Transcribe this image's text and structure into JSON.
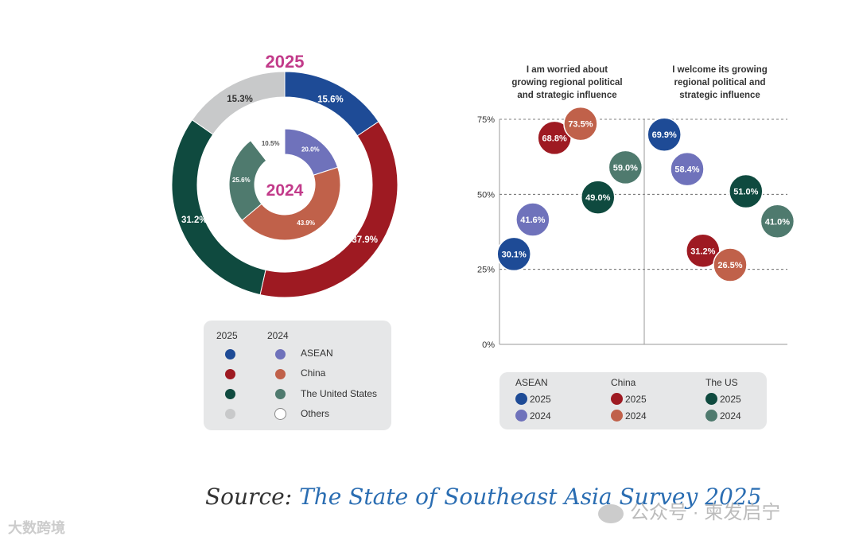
{
  "colors": {
    "asean_2025": "#1e4b96",
    "asean_2024": "#6f72bb",
    "china_2025": "#9e1a22",
    "china_2024": "#c0614a",
    "us_2025": "#0f4a3f",
    "us_2024": "#4f7a6e",
    "others_2025": "#c8c9ca",
    "others_2024": "#ffffff",
    "title_pink": "#c23b8a"
  },
  "chart_data": [
    {
      "type": "donut",
      "title": "2025",
      "inner_title": "2024",
      "outer_2025": [
        {
          "name": "ASEAN",
          "value": 15.6,
          "label": "15.6%"
        },
        {
          "name": "China",
          "value": 37.9,
          "label": "37.9%"
        },
        {
          "name": "The United States",
          "value": 31.2,
          "label": "31.2%"
        },
        {
          "name": "Others",
          "value": 15.3,
          "label": "15.3%"
        }
      ],
      "inner_2024": [
        {
          "name": "ASEAN",
          "value": 20.0,
          "label": "20.0%"
        },
        {
          "name": "China",
          "value": 43.9,
          "label": "43.9%"
        },
        {
          "name": "The United States",
          "value": 25.6,
          "label": "25.6%"
        },
        {
          "name": "Others",
          "value": 10.5,
          "label": "10.5%"
        }
      ],
      "legend": {
        "header_2025": "2025",
        "header_2024": "2024",
        "items": [
          "ASEAN",
          "China",
          "The United States",
          "Others"
        ]
      }
    },
    {
      "type": "scatter",
      "columns": [
        {
          "label": [
            "I am worried about",
            "growing regional political",
            "and strategic influence"
          ]
        },
        {
          "label": [
            "I welcome its growing",
            "regional political and",
            "strategic influence"
          ]
        }
      ],
      "y_ticks": [
        "75%",
        "50%",
        "25%",
        "0%"
      ],
      "ylim": [
        0,
        75
      ],
      "points": [
        {
          "col": "worried",
          "x": 0.1,
          "value": 30.1,
          "label": "30.1%",
          "series": "asean_2025"
        },
        {
          "col": "worried",
          "x": 0.23,
          "value": 41.6,
          "label": "41.6%",
          "series": "asean_2024"
        },
        {
          "col": "worried",
          "x": 0.38,
          "value": 68.8,
          "label": "68.8%",
          "series": "china_2025"
        },
        {
          "col": "worried",
          "x": 0.56,
          "value": 73.5,
          "label": "73.5%",
          "series": "china_2024"
        },
        {
          "col": "worried",
          "x": 0.68,
          "value": 49.0,
          "label": "49.0%",
          "series": "us_2025"
        },
        {
          "col": "worried",
          "x": 0.87,
          "value": 59.0,
          "label": "59.0%",
          "series": "us_2024"
        },
        {
          "col": "welcome",
          "x": 0.14,
          "value": 69.9,
          "label": "69.9%",
          "series": "asean_2025"
        },
        {
          "col": "welcome",
          "x": 0.3,
          "value": 58.4,
          "label": "58.4%",
          "series": "asean_2024"
        },
        {
          "col": "welcome",
          "x": 0.41,
          "value": 31.2,
          "label": "31.2%",
          "series": "china_2025"
        },
        {
          "col": "welcome",
          "x": 0.6,
          "value": 26.5,
          "label": "26.5%",
          "series": "china_2024"
        },
        {
          "col": "welcome",
          "x": 0.71,
          "value": 51.0,
          "label": "51.0%",
          "series": "us_2025"
        },
        {
          "col": "welcome",
          "x": 0.93,
          "value": 41.0,
          "label": "41.0%",
          "series": "us_2024"
        }
      ],
      "legend": {
        "groups": [
          "ASEAN",
          "China",
          "The US"
        ],
        "years": [
          "2025",
          "2024"
        ]
      }
    }
  ],
  "source": {
    "prefix": "Source:",
    "title": "The State of Southeast Asia Survey 2025"
  },
  "watermarks": {
    "left": "大数跨境",
    "right": "公众号 · 柬发启宁"
  }
}
